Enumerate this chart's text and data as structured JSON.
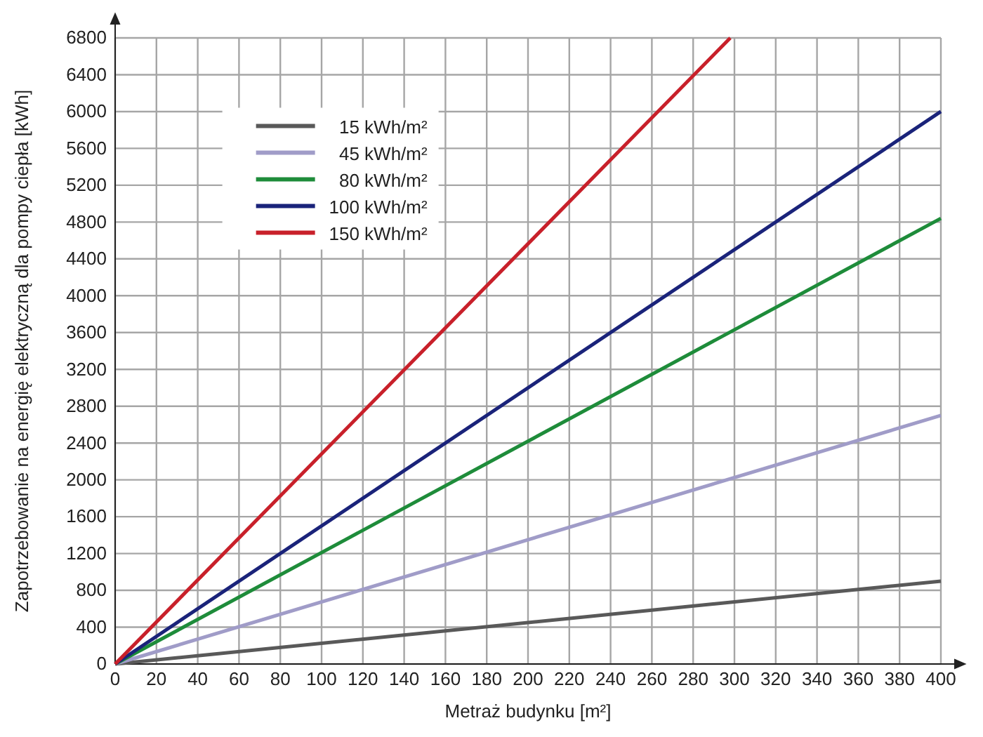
{
  "chart_data": {
    "type": "line",
    "xlabel": "Metraż budynku  [m²]",
    "ylabel": "Zapotrzebowanie na energię elektryczną dla pompy ciepła [kWh]",
    "xlim": [
      0,
      400
    ],
    "ylim": [
      0,
      6800
    ],
    "xticks": [
      0,
      20,
      40,
      60,
      80,
      100,
      120,
      140,
      160,
      180,
      200,
      220,
      240,
      260,
      280,
      300,
      320,
      340,
      360,
      380,
      400
    ],
    "yticks": [
      0,
      400,
      800,
      1200,
      1600,
      2000,
      2400,
      2800,
      3200,
      3600,
      4000,
      4400,
      4800,
      5200,
      5600,
      6000,
      6400,
      6800
    ],
    "grid": true,
    "legend": "top left",
    "line_style": "solid",
    "marker": "none",
    "series": [
      {
        "name": "15 kWh/m²",
        "color": "#595959",
        "x": [
          0,
          400
        ],
        "values": [
          0,
          900
        ]
      },
      {
        "name": "45 kWh/m²",
        "color": "#a09cc8",
        "x": [
          0,
          400
        ],
        "values": [
          0,
          2700
        ]
      },
      {
        "name": "80 kWh/m²",
        "color": "#1e8c3a",
        "x": [
          0,
          400
        ],
        "values": [
          0,
          4840
        ]
      },
      {
        "name": "100 kWh/m²",
        "color": "#1a237a",
        "x": [
          0,
          400
        ],
        "values": [
          0,
          6000
        ]
      },
      {
        "name": "150 kWh/m²",
        "color": "#c8202a",
        "x": [
          0,
          298
        ],
        "values": [
          0,
          6800
        ]
      }
    ]
  }
}
